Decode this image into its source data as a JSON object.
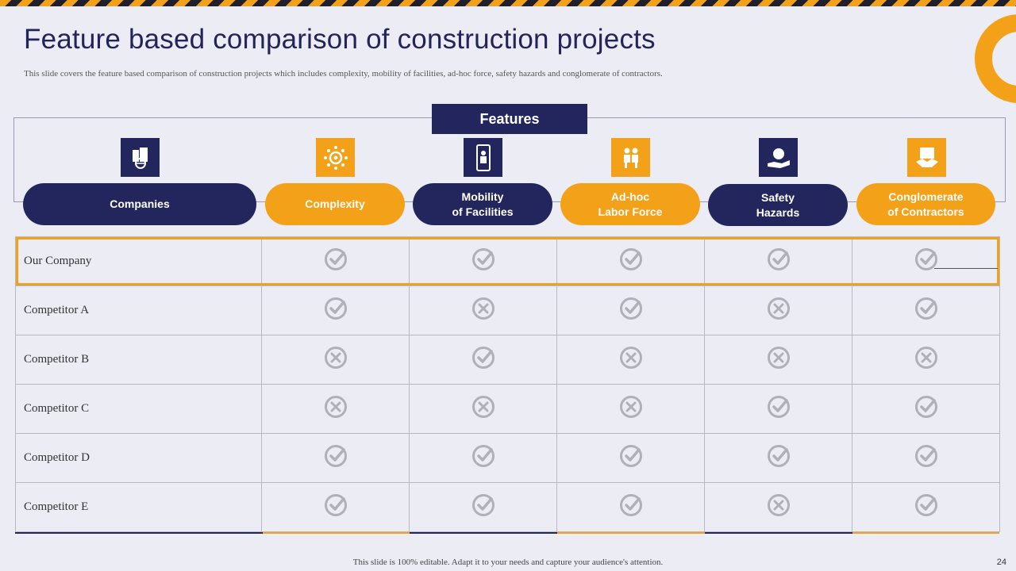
{
  "title": "Feature based comparison of construction projects",
  "subtitle": "This slide covers the feature based comparison of construction projects which includes complexity,  mobility of facilities,  ad-hoc force, safety hazards and conglomerate of contractors.",
  "features_label": "Features",
  "columns": [
    {
      "label": "Companies",
      "icon": "buildings-globe-icon",
      "color": "navy"
    },
    {
      "label": "Complexity",
      "icon": "gear-network-icon",
      "color": "orange"
    },
    {
      "label": "Mobility\nof Facilities",
      "icon": "mobile-person-icon",
      "color": "navy"
    },
    {
      "label": "Ad-hoc\nLabor Force",
      "icon": "workers-icon",
      "color": "orange"
    },
    {
      "label": "Safety\nHazards",
      "icon": "hand-shield-icon",
      "color": "navy"
    },
    {
      "label": "Conglomerate\nof Contractors",
      "icon": "handshake-document-icon",
      "color": "orange"
    }
  ],
  "rows": [
    {
      "name": "Our Company",
      "values": [
        "check",
        "check",
        "check",
        "check",
        "check"
      ]
    },
    {
      "name": "Competitor  A",
      "values": [
        "check",
        "cross",
        "check",
        "cross",
        "check"
      ]
    },
    {
      "name": "Competitor  B",
      "values": [
        "cross",
        "check",
        "cross",
        "cross",
        "cross"
      ]
    },
    {
      "name": "Competitor  C",
      "values": [
        "cross",
        "cross",
        "cross",
        "check",
        "check"
      ]
    },
    {
      "name": "Competitor  D",
      "values": [
        "check",
        "check",
        "check",
        "check",
        "check"
      ]
    },
    {
      "name": "Competitor  E",
      "values": [
        "check",
        "check",
        "check",
        "cross",
        "check"
      ]
    }
  ],
  "footer": "This slide is 100% editable.  Adapt it to your needs and capture your audience's  attention.",
  "page_number": "24",
  "colors": {
    "navy": "#23265c",
    "orange": "#f4a11a",
    "mark": "#b0b0b8"
  }
}
